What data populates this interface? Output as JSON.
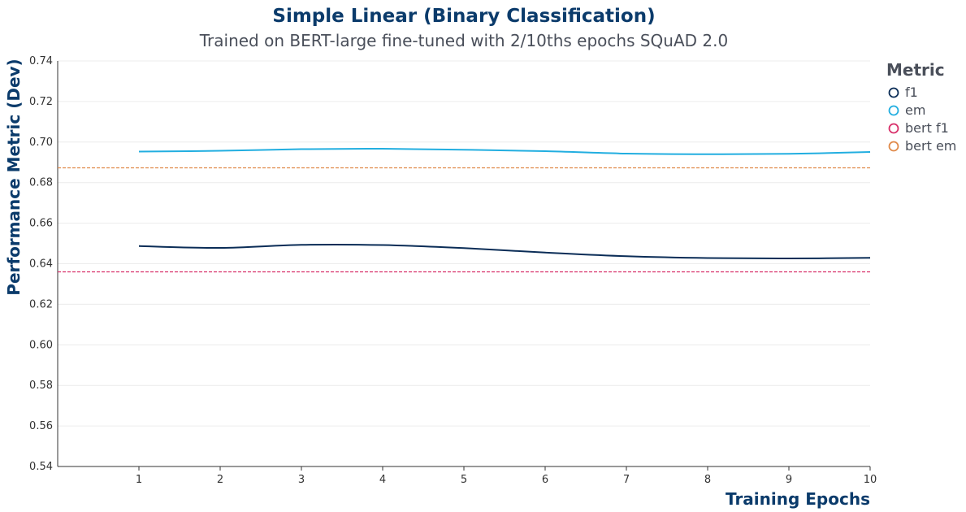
{
  "chart_data": {
    "type": "line",
    "title": "Simple Linear (Binary Classification)",
    "subtitle": "Trained on BERT-large fine-tuned with 2/10ths epochs SQuAD 2.0",
    "xlabel": "Training Epochs",
    "ylabel": "Performance Metric (Dev)",
    "x": [
      1,
      2,
      3,
      4,
      5,
      6,
      7,
      8,
      9,
      10
    ],
    "xlim": [
      0,
      10
    ],
    "ylim": [
      0.54,
      0.74
    ],
    "yticks": [
      "0.54",
      "0.56",
      "0.58",
      "0.60",
      "0.62",
      "0.64",
      "0.66",
      "0.68",
      "0.70",
      "0.72",
      "0.74"
    ],
    "xticks": [
      "1",
      "2",
      "3",
      "4",
      "5",
      "6",
      "7",
      "8",
      "9",
      "10"
    ],
    "grid": true,
    "legend": {
      "title": "Metric",
      "placement": "right"
    },
    "series": [
      {
        "name": "f1",
        "color": "#0b2d57",
        "dash": false,
        "values": [
          0.6487,
          0.6478,
          0.6493,
          0.6492,
          0.6477,
          0.6455,
          0.6437,
          0.6428,
          0.6426,
          0.6429
        ]
      },
      {
        "name": "em",
        "color": "#22aee0",
        "dash": false,
        "values": [
          0.6953,
          0.6957,
          0.6965,
          0.6967,
          0.6962,
          0.6955,
          0.6943,
          0.694,
          0.6942,
          0.6951
        ]
      },
      {
        "name": "bert f1",
        "color": "#d8306a",
        "dash": true,
        "constant": 0.636
      },
      {
        "name": "bert em",
        "color": "#e08a4a",
        "dash": true,
        "constant": 0.6873
      }
    ]
  }
}
